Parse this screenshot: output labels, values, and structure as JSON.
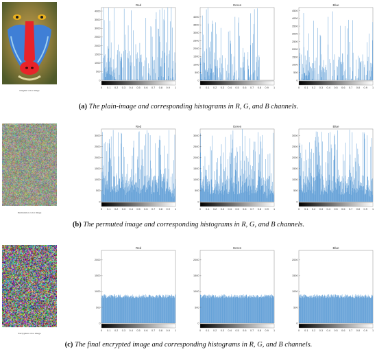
{
  "panels": [
    {
      "letter": "(a)",
      "caption": "The plain-image and corresponding histograms in R, G, and B channels.",
      "image_caption": "Original color image",
      "image_kind": "mandrill",
      "hists": [
        {
          "title": "Red",
          "yticks": [
            "0",
            "500",
            "1000",
            "1500",
            "2000",
            "2500",
            "3000",
            "3500",
            "4000"
          ],
          "ymax": 4200,
          "pattern": "sparse",
          "range": [
            0,
            1.0
          ]
        },
        {
          "title": "Green",
          "yticks": [
            "0",
            "500",
            "1000",
            "1500",
            "2000",
            "2500",
            "3000",
            "3500",
            "4000"
          ],
          "ymax": 4600,
          "pattern": "sparse",
          "range": [
            0,
            0.8
          ]
        },
        {
          "title": "Blue",
          "yticks": [
            "0",
            "500",
            "1000",
            "1500",
            "2000",
            "2500",
            "3000",
            "3500",
            "4000",
            "4500"
          ],
          "ymax": 4700,
          "pattern": "sparse",
          "range": [
            0,
            1.0
          ]
        }
      ]
    },
    {
      "letter": "(b)",
      "caption": "The permuted image and corresponding histograms in R, G, and B channels.",
      "image_caption": "Permutation color image",
      "image_kind": "permuted",
      "hists": [
        {
          "title": "Red",
          "yticks": [
            "0",
            "500",
            "1000",
            "1500",
            "2000",
            "2500",
            "3000"
          ],
          "ymax": 3300,
          "pattern": "dense",
          "range": [
            0,
            1.0
          ]
        },
        {
          "title": "Green",
          "yticks": [
            "0",
            "500",
            "1000",
            "1500",
            "2000",
            "2500",
            "3000"
          ],
          "ymax": 3300,
          "pattern": "dense",
          "range": [
            0,
            1.0
          ]
        },
        {
          "title": "Blue",
          "yticks": [
            "0",
            "500",
            "1000",
            "1500",
            "2000",
            "2500",
            "3000"
          ],
          "ymax": 3300,
          "pattern": "dense",
          "range": [
            0,
            1.0
          ]
        }
      ]
    },
    {
      "letter": "(c)",
      "caption": "The final encrypted image and corresponding histograms in R, G, and B channels.",
      "image_caption": "Encryption color image",
      "image_kind": "noise",
      "hists": [
        {
          "title": "Red",
          "yticks": [
            "0",
            "500",
            "1000",
            "1500",
            "2000"
          ],
          "ymax": 2300,
          "pattern": "flat",
          "level": 850,
          "range": [
            0,
            1.0
          ]
        },
        {
          "title": "Green",
          "yticks": [
            "0",
            "500",
            "1000",
            "1500",
            "2000"
          ],
          "ymax": 2300,
          "pattern": "flat",
          "level": 850,
          "range": [
            0,
            1.0
          ]
        },
        {
          "title": "Blue",
          "yticks": [
            "0",
            "500",
            "1000",
            "1500",
            "2000"
          ],
          "ymax": 2300,
          "pattern": "flat",
          "level": 850,
          "range": [
            0,
            1.0
          ]
        }
      ]
    }
  ],
  "xticks": [
    "0",
    "0.1",
    "0.2",
    "0.3",
    "0.4",
    "0.5",
    "0.6",
    "0.7",
    "0.8",
    "0.9",
    "1"
  ],
  "colors": {
    "bar": "#5b9bd5",
    "axis": "#333333"
  }
}
